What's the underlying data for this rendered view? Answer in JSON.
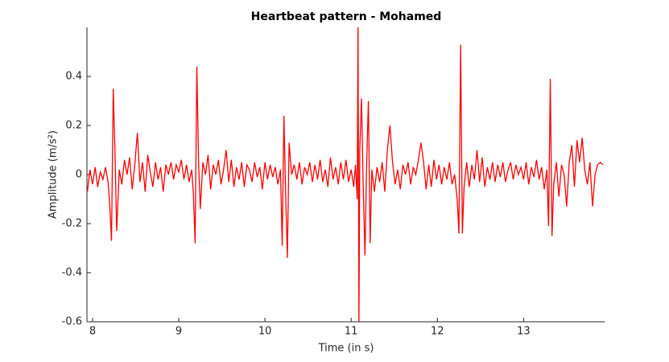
{
  "chart_data": {
    "type": "line",
    "title": "Heartbeat pattern - Mohamed",
    "xlabel": "Time (in s)",
    "ylabel": "Amplitude (m/s²)",
    "xlim": [
      7.935,
      13.94
    ],
    "xticks": [
      8,
      9,
      10,
      11,
      12,
      13
    ],
    "ylim": [
      -0.6,
      0.6
    ],
    "yticks": [
      -0.6,
      -0.4,
      -0.2,
      0,
      0.2,
      0.4
    ],
    "series": [
      {
        "color": "#ff0000",
        "x": [
          7.94,
          7.97,
          8.0,
          8.03,
          8.06,
          8.09,
          8.12,
          8.15,
          8.18,
          8.2,
          8.22,
          8.24,
          8.26,
          8.28,
          8.31,
          8.34,
          8.37,
          8.4,
          8.43,
          8.46,
          8.49,
          8.52,
          8.55,
          8.58,
          8.61,
          8.64,
          8.67,
          8.7,
          8.73,
          8.76,
          8.79,
          8.82,
          8.85,
          8.88,
          8.91,
          8.94,
          8.97,
          9.0,
          9.03,
          9.06,
          9.09,
          9.12,
          9.15,
          9.17,
          9.19,
          9.21,
          9.23,
          9.25,
          9.28,
          9.31,
          9.34,
          9.37,
          9.4,
          9.43,
          9.46,
          9.49,
          9.52,
          9.55,
          9.58,
          9.61,
          9.64,
          9.67,
          9.7,
          9.73,
          9.76,
          9.79,
          9.82,
          9.85,
          9.88,
          9.91,
          9.94,
          9.97,
          10.0,
          10.03,
          10.06,
          10.09,
          10.12,
          10.15,
          10.18,
          10.2,
          10.22,
          10.24,
          10.26,
          10.28,
          10.31,
          10.34,
          10.37,
          10.4,
          10.43,
          10.46,
          10.49,
          10.52,
          10.55,
          10.58,
          10.61,
          10.64,
          10.67,
          10.7,
          10.73,
          10.76,
          10.79,
          10.82,
          10.85,
          10.88,
          10.91,
          10.94,
          10.97,
          11.0,
          11.03,
          11.05,
          11.07,
          11.08,
          11.09,
          11.1,
          11.12,
          11.14,
          11.16,
          11.18,
          11.2,
          11.22,
          11.24,
          11.27,
          11.3,
          11.33,
          11.36,
          11.39,
          11.42,
          11.45,
          11.48,
          11.51,
          11.54,
          11.57,
          11.6,
          11.63,
          11.66,
          11.69,
          11.72,
          11.75,
          11.78,
          11.81,
          11.84,
          11.87,
          11.9,
          11.93,
          11.96,
          11.99,
          12.02,
          12.05,
          12.08,
          12.11,
          12.14,
          12.17,
          12.2,
          12.23,
          12.25,
          12.27,
          12.29,
          12.31,
          12.34,
          12.37,
          12.4,
          12.43,
          12.46,
          12.49,
          12.52,
          12.55,
          12.58,
          12.61,
          12.64,
          12.67,
          12.7,
          12.73,
          12.76,
          12.79,
          12.82,
          12.85,
          12.88,
          12.91,
          12.94,
          12.97,
          13.0,
          13.03,
          13.06,
          13.09,
          13.12,
          13.15,
          13.18,
          13.21,
          13.24,
          13.27,
          13.29,
          13.31,
          13.33,
          13.35,
          13.38,
          13.41,
          13.44,
          13.47,
          13.5,
          13.53,
          13.56,
          13.59,
          13.62,
          13.65,
          13.68,
          13.71,
          13.74,
          13.77,
          13.8,
          13.83,
          13.86,
          13.89,
          13.92
        ],
        "values": [
          -0.07,
          0.02,
          -0.04,
          0.03,
          -0.05,
          0.01,
          -0.02,
          0.03,
          -0.03,
          -0.13,
          -0.27,
          0.35,
          0.1,
          -0.23,
          0.02,
          -0.04,
          0.06,
          0.0,
          0.07,
          -0.06,
          0.04,
          0.17,
          -0.03,
          0.05,
          -0.07,
          0.08,
          0.01,
          -0.05,
          0.05,
          -0.02,
          0.03,
          -0.07,
          0.04,
          0.0,
          0.05,
          -0.02,
          0.04,
          0.01,
          0.06,
          -0.02,
          0.04,
          -0.03,
          0.02,
          -0.08,
          -0.28,
          0.44,
          0.05,
          -0.14,
          0.05,
          0.0,
          0.08,
          -0.06,
          0.04,
          0.0,
          0.06,
          -0.04,
          0.02,
          0.1,
          -0.03,
          0.06,
          -0.05,
          0.03,
          -0.02,
          0.05,
          -0.05,
          0.04,
          0.02,
          -0.03,
          0.05,
          -0.01,
          0.03,
          -0.06,
          0.05,
          -0.02,
          0.04,
          -0.01,
          0.03,
          -0.04,
          0.02,
          -0.29,
          0.24,
          -0.08,
          -0.34,
          0.13,
          0.0,
          0.04,
          -0.02,
          0.05,
          -0.04,
          0.03,
          0.0,
          0.05,
          -0.03,
          0.04,
          -0.02,
          0.06,
          -0.03,
          0.02,
          -0.05,
          0.07,
          -0.02,
          0.03,
          -0.04,
          0.05,
          -0.02,
          0.06,
          -0.03,
          0.02,
          -0.05,
          0.04,
          -0.1,
          0.62,
          -0.62,
          0.1,
          0.31,
          -0.05,
          -0.33,
          0.05,
          0.3,
          -0.28,
          0.02,
          -0.07,
          0.03,
          -0.03,
          0.05,
          -0.07,
          0.1,
          0.2,
          0.05,
          -0.04,
          0.02,
          -0.06,
          0.04,
          0.0,
          0.05,
          -0.04,
          0.03,
          0.0,
          0.06,
          0.13,
          0.05,
          -0.06,
          0.04,
          -0.05,
          0.06,
          -0.02,
          0.04,
          -0.04,
          0.03,
          -0.02,
          0.05,
          -0.04,
          0.0,
          -0.1,
          -0.24,
          0.53,
          -0.24,
          -0.05,
          0.05,
          -0.05,
          0.04,
          -0.02,
          0.1,
          -0.03,
          0.07,
          -0.05,
          0.03,
          -0.02,
          0.05,
          -0.03,
          0.04,
          -0.01,
          0.05,
          -0.03,
          0.02,
          0.05,
          -0.02,
          0.04,
          0.0,
          0.03,
          -0.02,
          0.05,
          -0.04,
          0.03,
          -0.01,
          0.06,
          -0.02,
          0.03,
          -0.06,
          0.02,
          -0.21,
          0.39,
          -0.25,
          -0.04,
          0.05,
          -0.09,
          0.04,
          0.0,
          -0.13,
          0.05,
          0.12,
          -0.05,
          0.14,
          0.05,
          0.15,
          0.02,
          -0.04,
          0.05,
          -0.13,
          0.0,
          0.04,
          0.05,
          0.04
        ]
      }
    ]
  }
}
